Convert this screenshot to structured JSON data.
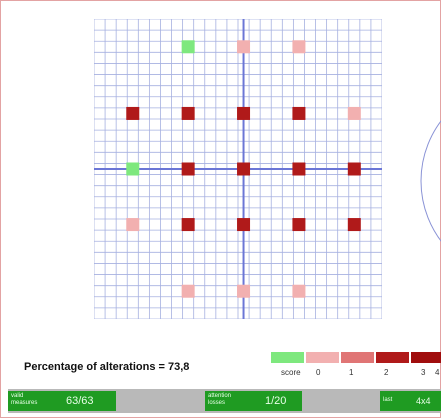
{
  "grid": {
    "cells_x": 26,
    "cells_y": 27,
    "axis_col": 13,
    "axis_row": 13,
    "points": [
      {
        "col": 8,
        "row": 2,
        "score": 0
      },
      {
        "col": 13,
        "row": 2,
        "score": 1
      },
      {
        "col": 18,
        "row": 2,
        "score": 1
      },
      {
        "col": 3,
        "row": 8,
        "score": 3
      },
      {
        "col": 8,
        "row": 8,
        "score": 3
      },
      {
        "col": 13,
        "row": 8,
        "score": 3
      },
      {
        "col": 18,
        "row": 8,
        "score": 3
      },
      {
        "col": 23,
        "row": 8,
        "score": 1
      },
      {
        "col": 3,
        "row": 13,
        "score": 0
      },
      {
        "col": 8,
        "row": 13,
        "score": 3
      },
      {
        "col": 13,
        "row": 13,
        "score": 3
      },
      {
        "col": 18,
        "row": 13,
        "score": 3
      },
      {
        "col": 23,
        "row": 13,
        "score": 3
      },
      {
        "col": 3,
        "row": 18,
        "score": 1
      },
      {
        "col": 8,
        "row": 18,
        "score": 3
      },
      {
        "col": 13,
        "row": 18,
        "score": 3
      },
      {
        "col": 18,
        "row": 18,
        "score": 3
      },
      {
        "col": 23,
        "row": 18,
        "score": 3
      },
      {
        "col": 8,
        "row": 24,
        "score": 1
      },
      {
        "col": 13,
        "row": 24,
        "score": 1
      },
      {
        "col": 18,
        "row": 24,
        "score": 1
      }
    ]
  },
  "percentage_label": "Percentage of alterations = 73,8",
  "legend": {
    "title": "score",
    "items": [
      {
        "label": "0",
        "color": "#7ee87e"
      },
      {
        "label": "1",
        "color": "#f2b0b0"
      },
      {
        "label": "2",
        "color": "#e07575"
      },
      {
        "label": "3",
        "color": "#b01a1a"
      },
      {
        "label": "4",
        "color": "#a00d0d"
      }
    ]
  },
  "colors": {
    "grid_line": "#a6b0e0",
    "axis_line": "#6b76d6",
    "frame_border": "#e3a3a3",
    "status_green": "#1f9b22"
  },
  "status_bar": {
    "valid_label": "valid measures",
    "valid_value": "63/63",
    "attention_label": "attention losses",
    "attention_value": "1/20",
    "right_label": "last",
    "right_value": "4x4"
  }
}
